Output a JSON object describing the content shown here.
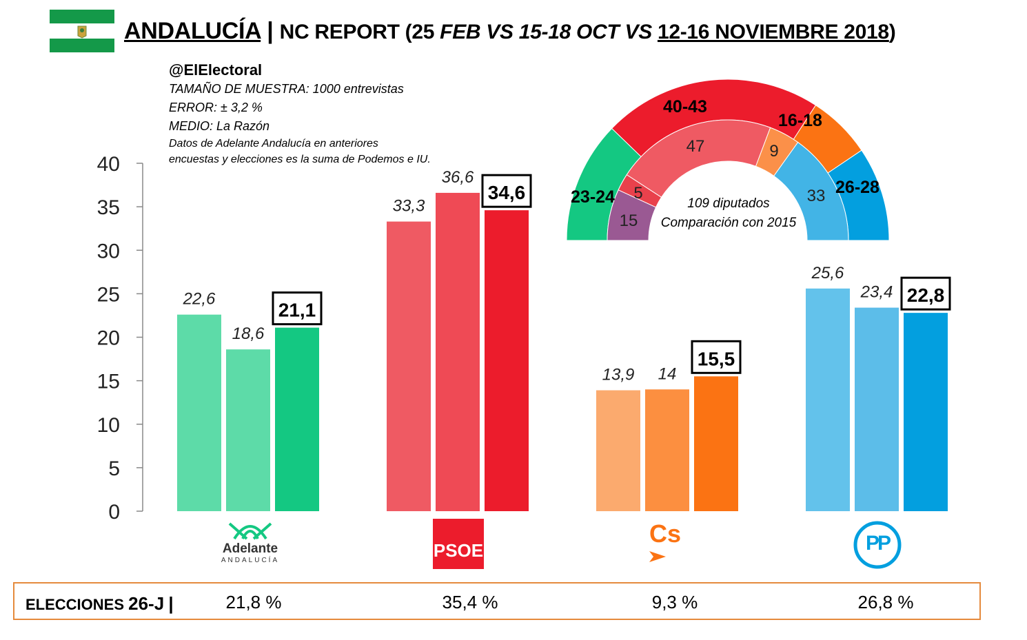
{
  "header": {
    "region": "ANDALUCÍA",
    "separator": " | ",
    "pollster": "NC REPORT (25 ",
    "feb": "FEB VS ",
    "oct": "15-18 OCT VS ",
    "dates": "12-16 NOVIEMBRE 2018",
    "close": ")"
  },
  "info": {
    "handle": "@ElElectoral",
    "sample": "TAMAÑO DE MUESTRA: 1000 entrevistas",
    "error": "ERROR: ± 3,2 %",
    "medium": "MEDIO: La Razón",
    "note": "Datos de Adelante Andalucía en anteriores encuestas y elecciones es la suma de Podemos e IU."
  },
  "chart_data": {
    "type": "bar",
    "categories": [
      "Adelante Andalucía",
      "PSOE",
      "Cs",
      "PP"
    ],
    "series": [
      {
        "name": "",
        "values": [
          22.6,
          33.3,
          13.9,
          25.6
        ],
        "labels": [
          "22,6",
          "33,3",
          "13,9",
          "25,6"
        ]
      },
      {
        "name": "",
        "values": [
          18.6,
          36.6,
          14,
          23.4
        ],
        "labels": [
          "18,6",
          "36,6",
          "14",
          "23,4"
        ]
      },
      {
        "name": "",
        "values": [
          21.1,
          34.6,
          15.5,
          22.8
        ],
        "labels": [
          "21,1",
          "34,6",
          "15,5",
          "22,8"
        ]
      }
    ],
    "yticks": [
      0,
      5,
      10,
      15,
      20,
      25,
      30,
      35,
      40
    ],
    "ylim": [
      0,
      40
    ],
    "colors": [
      [
        "#5ddba8",
        "#5ddba8",
        "#14c882"
      ],
      [
        "#ef5a63",
        "#ef4a55",
        "#ec1c2c"
      ],
      [
        "#fbaa6e",
        "#fc8f40",
        "#fb7313"
      ],
      [
        "#63c2eb",
        "#5cbde9",
        "#039fdf"
      ]
    ],
    "seats": {
      "outer": [
        {
          "label": "23-24",
          "color": "#14c882"
        },
        {
          "label": "40-43",
          "color": "#ec1c2c"
        },
        {
          "label": "16-18",
          "color": "#fb7313"
        },
        {
          "label": "26-28",
          "color": "#039fdf"
        }
      ],
      "inner": [
        {
          "label": "15",
          "value": 15,
          "color": "#9a5993"
        },
        {
          "label": "5",
          "value": 5,
          "color": "#e9414c"
        },
        {
          "label": "47",
          "value": 47,
          "color": "#ef5a63"
        },
        {
          "label": "9",
          "value": 9,
          "color": "#fb9049"
        },
        {
          "label": "33",
          "value": 33,
          "color": "#42b4e6"
        }
      ],
      "caption1": "109 diputados",
      "caption2": "Comparación con 2015"
    }
  },
  "parties": {
    "adelante_name": "Adelante",
    "adelante_sub": "ANDALUCÍA",
    "psoe": "PSOE",
    "cs": "Cs",
    "pp": "PP"
  },
  "footer": {
    "label": "ELECCIONES ",
    "label_big": "26-J",
    "bar": "|",
    "values": [
      "21,8 %",
      "35,4 %",
      "9,3 %",
      "26,8 %"
    ]
  }
}
